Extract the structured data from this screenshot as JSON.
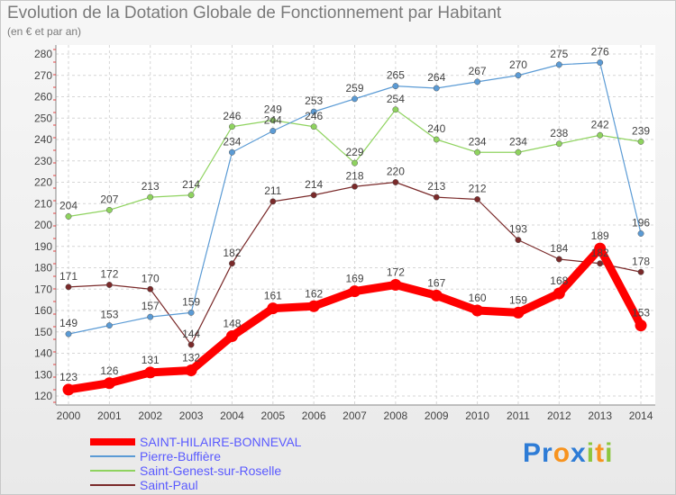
{
  "chart_data": {
    "type": "line",
    "title": "Evolution de la Dotation Globale de Fonctionnement par Habitant",
    "subtitle": "(en € et par an)",
    "xlabel": "",
    "ylabel": "",
    "x": [
      "2000",
      "2001",
      "2002",
      "2003",
      "2004",
      "2005",
      "2006",
      "2007",
      "2008",
      "2009",
      "2010",
      "2011",
      "2012",
      "2013",
      "2014"
    ],
    "ylim": [
      120,
      280
    ],
    "yticks": [
      "120",
      "130",
      "140",
      "150",
      "160",
      "170",
      "180",
      "190",
      "200",
      "210",
      "220",
      "230",
      "240",
      "250",
      "260",
      "270",
      "280"
    ],
    "grid": true,
    "legend_position": "bottom-left",
    "series": [
      {
        "name": "SAINT-HILAIRE-BONNEVAL",
        "color": "#ff0000",
        "values": [
          123,
          126,
          131,
          132,
          148,
          161,
          162,
          169,
          172,
          167,
          160,
          159,
          168,
          189,
          153
        ]
      },
      {
        "name": "Pierre-Buffière",
        "color": "#5b9bd5",
        "values": [
          149,
          153,
          157,
          159,
          234,
          244,
          253,
          259,
          265,
          264,
          267,
          270,
          275,
          276,
          196
        ]
      },
      {
        "name": "Saint-Genest-sur-Roselle",
        "color": "#8fd35f",
        "values": [
          204,
          207,
          213,
          214,
          246,
          249,
          246,
          229,
          254,
          240,
          234,
          234,
          238,
          242,
          239
        ]
      },
      {
        "name": "Saint-Paul",
        "color": "#7a2a2a",
        "values": [
          171,
          172,
          170,
          144,
          182,
          211,
          214,
          218,
          220,
          213,
          212,
          193,
          184,
          182,
          178
        ]
      }
    ],
    "annotations": [
      {
        "series": 0,
        "labels": [
          "123",
          "126",
          "131",
          "132",
          "148",
          "161",
          "162",
          "169",
          "172",
          "167",
          "160",
          "159",
          "168",
          "189",
          "153"
        ]
      },
      {
        "series": 1,
        "labels": [
          "149",
          "153",
          "157",
          "159",
          "234",
          "244",
          "253",
          "259",
          "265",
          "264",
          "267",
          "270",
          "275",
          "276",
          "196"
        ]
      },
      {
        "series": 2,
        "labels": [
          "204",
          "207",
          "213",
          "214",
          "246",
          "249",
          "246",
          "229",
          "254",
          "240",
          "234",
          "234",
          "238",
          "242",
          "239"
        ]
      },
      {
        "series": 3,
        "labels": [
          "171",
          "172",
          "170",
          "144",
          "182",
          "211",
          "214",
          "218",
          "220",
          "213",
          "212",
          "193",
          "184",
          "182",
          "178"
        ]
      }
    ]
  },
  "logo": {
    "text": "Proxiti",
    "letters": [
      "P",
      "r",
      "o",
      "x",
      "i",
      "t",
      "i"
    ],
    "colors": [
      "#2e7cd6",
      "#2e7cd6",
      "#f7931e",
      "#2e7cd6",
      "#8cc63f",
      "#f7931e",
      "#8cc63f"
    ]
  }
}
